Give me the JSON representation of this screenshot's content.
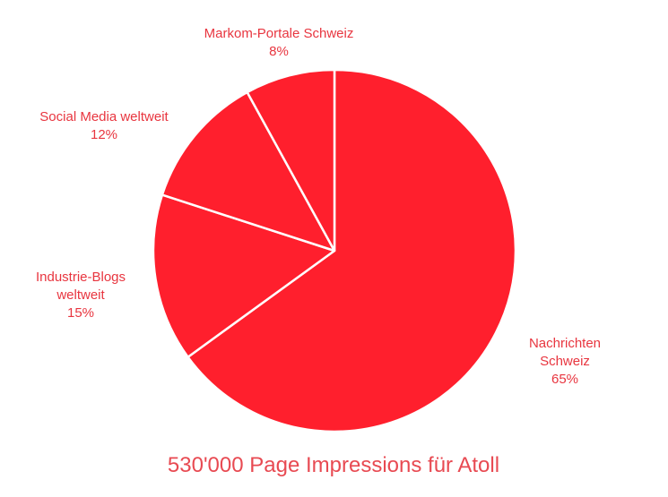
{
  "colors": {
    "slice_fill": "#ff1f2d",
    "slice_stroke": "#ffffff",
    "label_text": "#e8353f",
    "caption_text": "#e84a52"
  },
  "chart_data": {
    "type": "pie",
    "title": "530'000 Page Impressions für Atoll",
    "start": "12 o'clock",
    "direction": "clockwise",
    "slices": [
      {
        "label_lines": [
          "Nachrichten",
          "Schweiz"
        ],
        "value_label": "65%",
        "value": 65
      },
      {
        "label_lines": [
          "Industrie-Blogs",
          "weltweit"
        ],
        "value_label": "15%",
        "value": 15
      },
      {
        "label_lines": [
          "Social Media weltweit"
        ],
        "value_label": "12%",
        "value": 12
      },
      {
        "label_lines": [
          "Markom-Portale Schweiz"
        ],
        "value_label": "8%",
        "value": 8
      }
    ]
  }
}
